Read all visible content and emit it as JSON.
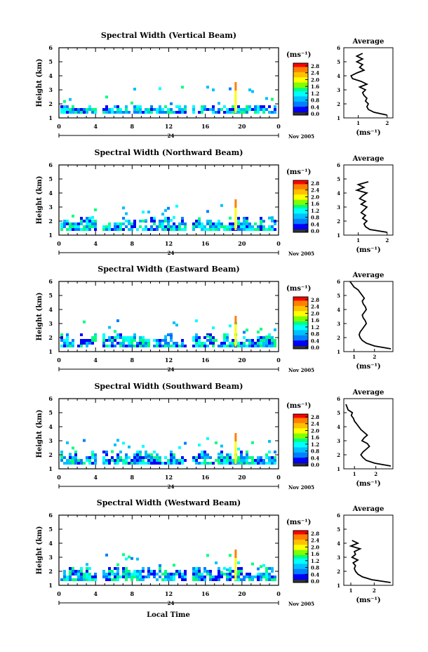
{
  "figure": {
    "xlabel": "Local Time",
    "date_label": "Nov 2005",
    "day_label": "24",
    "unit_label": "(ms⁻¹)",
    "avg_title": "Average",
    "avg_xlabel": "(ms⁻¹)",
    "ylabel": "Height (km)"
  },
  "colors": {
    "scale": [
      "#000080",
      "#0000ff",
      "#0080ff",
      "#00c0ff",
      "#00ffff",
      "#00ff80",
      "#80ff00",
      "#ffff00",
      "#ffc000",
      "#ff8000",
      "#ff0000"
    ]
  },
  "chart_data": [
    {
      "type": "heatmap",
      "title": "Spectral Width (Vertical Beam)",
      "xlabel": "Local Time",
      "ylabel": "Height (km)",
      "x_ticks": [
        "0",
        "4",
        "8",
        "12",
        "16",
        "20",
        "0"
      ],
      "xlim": [
        0,
        24
      ],
      "y_ticks": [
        "1",
        "2",
        "3",
        "4",
        "5",
        "6"
      ],
      "ylim": [
        1,
        6
      ],
      "colorbar": {
        "label": "(ms⁻¹)",
        "ticks": [
          "0.0",
          "0.4",
          "0.8",
          "1.2",
          "1.6",
          "2.0",
          "2.4",
          "2.8"
        ],
        "range": [
          0,
          3.0
        ]
      },
      "average_profile": {
        "title": "Average",
        "xlabel": "(ms⁻¹)",
        "x_ticks": [
          "1",
          "2"
        ],
        "xlim": [
          0.5,
          2.2
        ],
        "height": [
          1.2,
          1.4,
          1.6,
          1.8,
          2.0,
          2.2,
          2.4,
          2.6,
          2.8,
          3.0,
          3.2,
          3.4,
          3.6,
          3.8,
          4.0,
          4.2,
          4.4,
          4.6,
          4.8,
          5.0,
          5.2,
          5.4,
          5.6
        ],
        "width": [
          2.0,
          1.55,
          1.35,
          1.3,
          1.35,
          1.25,
          1.3,
          1.2,
          1.15,
          1.25,
          1.05,
          1.3,
          1.1,
          0.8,
          0.75,
          0.95,
          1.2,
          1.05,
          1.15,
          0.95,
          1.15,
          0.95,
          1.15
        ]
      }
    },
    {
      "type": "heatmap",
      "title": "Spectral Width (Northward Beam)",
      "xlabel": "Local Time",
      "ylabel": "Height (km)",
      "x_ticks": [
        "0",
        "4",
        "8",
        "12",
        "16",
        "20",
        "0"
      ],
      "xlim": [
        0,
        24
      ],
      "y_ticks": [
        "1",
        "2",
        "3",
        "4",
        "5",
        "6"
      ],
      "ylim": [
        1,
        6
      ],
      "colorbar": {
        "label": "(ms⁻¹)",
        "ticks": [
          "0.0",
          "0.4",
          "0.8",
          "1.2",
          "1.6",
          "2.0",
          "2.4",
          "2.8"
        ],
        "range": [
          0,
          3.0
        ]
      },
      "average_profile": {
        "title": "Average",
        "xlabel": "(ms⁻¹)",
        "x_ticks": [
          "1",
          "2"
        ],
        "xlim": [
          0.5,
          2.2
        ],
        "height": [
          1.2,
          1.4,
          1.6,
          1.8,
          2.0,
          2.2,
          2.4,
          2.6,
          2.8,
          3.0,
          3.2,
          3.4,
          3.6,
          3.8,
          4.0,
          4.2,
          4.4,
          4.6,
          4.8
        ],
        "width": [
          2.0,
          1.4,
          1.25,
          1.2,
          1.3,
          1.15,
          1.25,
          1.1,
          1.2,
          1.3,
          1.1,
          1.25,
          1.05,
          1.15,
          1.3,
          0.95,
          1.2,
          1.0,
          1.35
        ]
      }
    },
    {
      "type": "heatmap",
      "title": "Spectral Width (Eastward Beam)",
      "xlabel": "Local Time",
      "ylabel": "Height (km)",
      "x_ticks": [
        "0",
        "4",
        "8",
        "12",
        "16",
        "20",
        "0"
      ],
      "xlim": [
        0,
        24
      ],
      "y_ticks": [
        "1",
        "2",
        "3",
        "4",
        "5",
        "6"
      ],
      "ylim": [
        1,
        6
      ],
      "colorbar": {
        "label": "(ms⁻¹)",
        "ticks": [
          "0.0",
          "0.4",
          "0.8",
          "1.2",
          "1.6",
          "2.0",
          "2.4",
          "2.8"
        ],
        "range": [
          0,
          3.0
        ]
      },
      "average_profile": {
        "title": "Average",
        "xlabel": "(ms⁻¹)",
        "x_ticks": [
          "1",
          "2"
        ],
        "xlim": [
          0.5,
          2.9
        ],
        "height": [
          1.2,
          1.4,
          1.6,
          1.8,
          2.0,
          2.2,
          2.4,
          2.6,
          2.8,
          3.0,
          3.2,
          3.4,
          3.6,
          3.8,
          4.0,
          4.2,
          4.4,
          4.6,
          4.8,
          5.0,
          5.2,
          5.4,
          5.6,
          5.8,
          6.0
        ],
        "width": [
          2.8,
          2.0,
          1.6,
          1.4,
          1.3,
          1.25,
          1.3,
          1.4,
          1.5,
          1.6,
          1.55,
          1.45,
          1.4,
          1.5,
          1.6,
          1.55,
          1.45,
          1.4,
          1.5,
          1.4,
          1.3,
          1.2,
          1.0,
          0.9,
          0.8
        ]
      }
    },
    {
      "type": "heatmap",
      "title": "Spectral Width (Southward Beam)",
      "xlabel": "Local Time",
      "ylabel": "Height (km)",
      "x_ticks": [
        "0",
        "4",
        "8",
        "12",
        "16",
        "20",
        "0"
      ],
      "xlim": [
        0,
        24
      ],
      "y_ticks": [
        "1",
        "2",
        "3",
        "4",
        "5",
        "6"
      ],
      "ylim": [
        1,
        6
      ],
      "colorbar": {
        "label": "(ms⁻¹)",
        "ticks": [
          "0.0",
          "0.4",
          "0.8",
          "1.2",
          "1.6",
          "2.0",
          "2.4",
          "2.8"
        ],
        "range": [
          0,
          3.0
        ]
      },
      "average_profile": {
        "title": "Average",
        "xlabel": "(ms⁻¹)",
        "x_ticks": [
          "1",
          "2"
        ],
        "xlim": [
          0.5,
          2.8
        ],
        "height": [
          1.2,
          1.4,
          1.6,
          1.8,
          2.0,
          2.2,
          2.4,
          2.6,
          2.8,
          3.0,
          3.2,
          3.4,
          3.6,
          3.8,
          4.0,
          4.2,
          4.4,
          4.6,
          4.8,
          5.0,
          5.2,
          5.4,
          5.6
        ],
        "width": [
          2.7,
          1.95,
          1.55,
          1.4,
          1.3,
          1.4,
          1.55,
          1.7,
          1.6,
          1.35,
          1.45,
          1.6,
          1.45,
          1.3,
          1.2,
          1.1,
          1.0,
          0.95,
          0.85,
          0.9,
          0.7,
          0.65,
          0.6
        ]
      }
    },
    {
      "type": "heatmap",
      "title": "Spectral Width (Westward Beam)",
      "xlabel": "Local Time",
      "ylabel": "Height (km)",
      "x_ticks": [
        "0",
        "4",
        "8",
        "12",
        "16",
        "20",
        "0"
      ],
      "xlim": [
        0,
        24
      ],
      "y_ticks": [
        "1",
        "2",
        "3",
        "4",
        "5",
        "6"
      ],
      "ylim": [
        1,
        6
      ],
      "colorbar": {
        "label": "(ms⁻¹)",
        "ticks": [
          "0.0",
          "0.4",
          "0.8",
          "1.2",
          "1.6",
          "2.0",
          "2.4",
          "2.8"
        ],
        "range": [
          0,
          3.0
        ]
      },
      "average_profile": {
        "title": "Average",
        "xlabel": "(ms⁻¹)",
        "x_ticks": [
          "1",
          "2"
        ],
        "xlim": [
          0.7,
          2.8
        ],
        "height": [
          1.2,
          1.4,
          1.6,
          1.8,
          2.0,
          2.2,
          2.4,
          2.6,
          2.8,
          3.0,
          3.2,
          3.4,
          3.6,
          3.8,
          4.0,
          4.2
        ],
        "width": [
          2.7,
          1.9,
          1.5,
          1.3,
          1.2,
          1.15,
          1.2,
          1.1,
          1.3,
          1.05,
          1.2,
          1.15,
          1.4,
          1.0,
          1.3,
          1.05
        ]
      }
    }
  ]
}
